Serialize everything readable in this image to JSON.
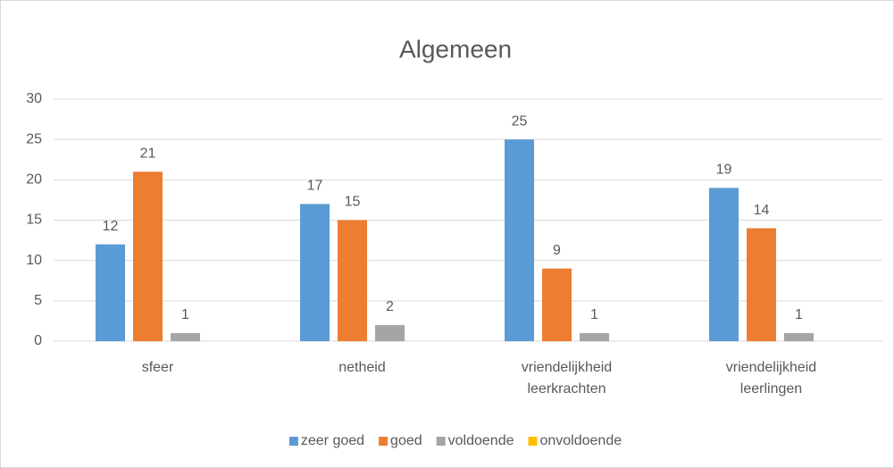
{
  "chart_data": {
    "type": "bar",
    "title": "Algemeen",
    "categories": [
      "sfeer",
      "netheid",
      "vriendelijkheid leerkrachten",
      "vriendelijkheid leerlingen"
    ],
    "series": [
      {
        "name": "zeer goed",
        "color": "#5b9bd5",
        "values": [
          12,
          17,
          25,
          19
        ],
        "data_labels": true
      },
      {
        "name": "goed",
        "color": "#ed7d31",
        "values": [
          21,
          15,
          9,
          14
        ],
        "data_labels": true
      },
      {
        "name": "voldoende",
        "color": "#a5a5a5",
        "values": [
          1,
          2,
          1,
          1
        ],
        "data_labels": true
      },
      {
        "name": "onvoldoende",
        "color": "#ffc000",
        "values": [
          0,
          0,
          0,
          0
        ],
        "data_labels": false
      }
    ],
    "ylim": [
      0,
      30
    ],
    "yticks": [
      0,
      5,
      10,
      15,
      20,
      25,
      30
    ],
    "grid": true,
    "legend": "bottom"
  }
}
